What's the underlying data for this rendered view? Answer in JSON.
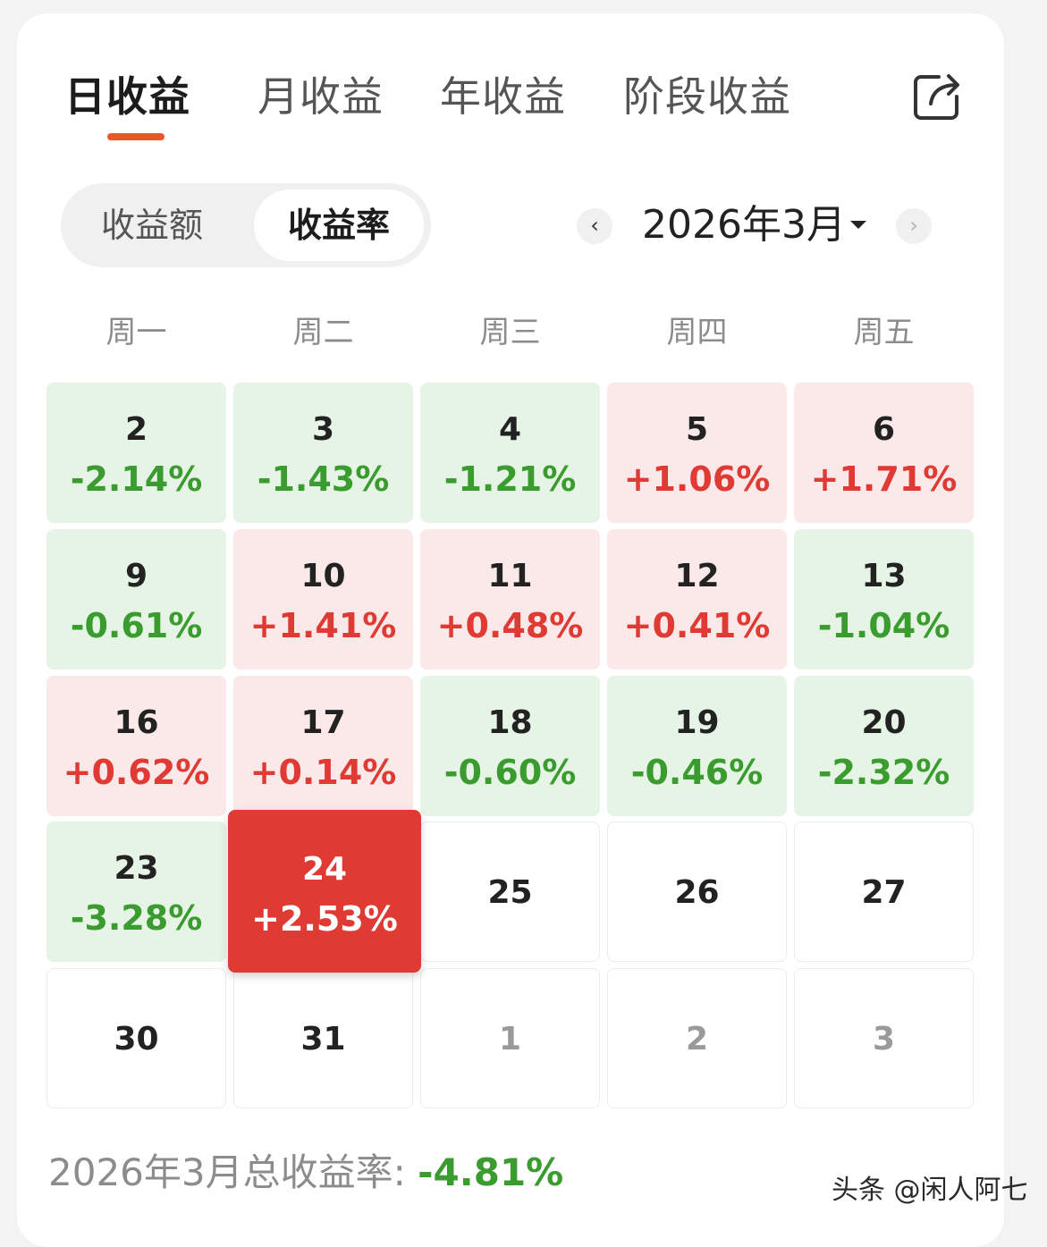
{
  "tabs": [
    {
      "label": "日收益",
      "active": true
    },
    {
      "label": "月收益",
      "active": false
    },
    {
      "label": "年收益",
      "active": false
    },
    {
      "label": "阶段收益",
      "active": false
    }
  ],
  "share_icon": "share-icon",
  "segment": {
    "options": [
      "收益额",
      "收益率"
    ],
    "selected": "收益率"
  },
  "month_nav": {
    "prev_icon": "chevron-left-icon",
    "label": "2026年3月",
    "dropdown_icon": "caret-down-icon",
    "next_icon": "chevron-right-icon"
  },
  "weekdays": [
    "周一",
    "周二",
    "周三",
    "周四",
    "周五"
  ],
  "weeks": [
    [
      {
        "day": "2",
        "pct": "-2.14%",
        "type": "loss"
      },
      {
        "day": "3",
        "pct": "-1.43%",
        "type": "loss"
      },
      {
        "day": "4",
        "pct": "-1.21%",
        "type": "loss"
      },
      {
        "day": "5",
        "pct": "+1.06%",
        "type": "gain"
      },
      {
        "day": "6",
        "pct": "+1.71%",
        "type": "gain"
      }
    ],
    [
      {
        "day": "9",
        "pct": "-0.61%",
        "type": "loss"
      },
      {
        "day": "10",
        "pct": "+1.41%",
        "type": "gain"
      },
      {
        "day": "11",
        "pct": "+0.48%",
        "type": "gain"
      },
      {
        "day": "12",
        "pct": "+0.41%",
        "type": "gain"
      },
      {
        "day": "13",
        "pct": "-1.04%",
        "type": "loss"
      }
    ],
    [
      {
        "day": "16",
        "pct": "+0.62%",
        "type": "gain"
      },
      {
        "day": "17",
        "pct": "+0.14%",
        "type": "gain"
      },
      {
        "day": "18",
        "pct": "-0.60%",
        "type": "loss"
      },
      {
        "day": "19",
        "pct": "-0.46%",
        "type": "loss"
      },
      {
        "day": "20",
        "pct": "-2.32%",
        "type": "loss"
      }
    ],
    [
      {
        "day": "23",
        "pct": "-3.28%",
        "type": "loss"
      },
      {
        "day": "24",
        "pct": "+2.53%",
        "type": "today"
      },
      {
        "day": "25",
        "pct": "",
        "type": "empty"
      },
      {
        "day": "26",
        "pct": "",
        "type": "empty"
      },
      {
        "day": "27",
        "pct": "",
        "type": "empty"
      }
    ],
    [
      {
        "day": "30",
        "pct": "",
        "type": "empty"
      },
      {
        "day": "31",
        "pct": "",
        "type": "empty"
      },
      {
        "day": "1",
        "pct": "",
        "type": "othermonth"
      },
      {
        "day": "2",
        "pct": "",
        "type": "othermonth"
      },
      {
        "day": "3",
        "pct": "",
        "type": "othermonth"
      }
    ]
  ],
  "colors": {
    "gain_text": "#df3a33",
    "loss_text": "#3a9b2e",
    "gain_bg": "#fbe8e8",
    "loss_bg": "#e6f4e6",
    "today_bg": "#df3a33",
    "tab_accent": "#e8562a"
  },
  "summary": {
    "label": "2026年3月总收益率: ",
    "value": "-4.81%"
  },
  "watermark": "头条 @闲人阿七"
}
